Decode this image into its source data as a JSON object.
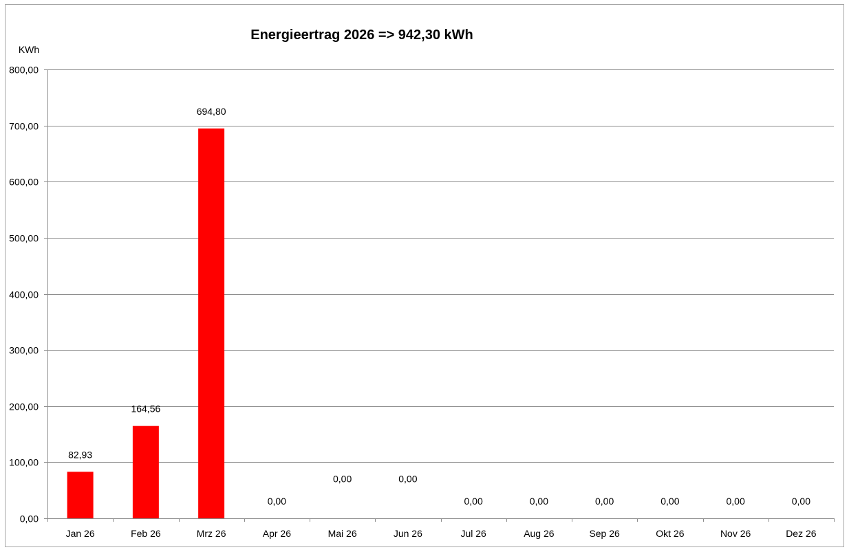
{
  "chart_data": {
    "type": "bar",
    "title": "Energieertrag  2026  =>  942,30 kWh",
    "ylabel": "KWh",
    "xlabel": "",
    "ylim": [
      0,
      800
    ],
    "yticks": [
      0,
      100,
      200,
      300,
      400,
      500,
      600,
      700,
      800
    ],
    "ytick_labels": [
      "0,00",
      "100,00",
      "200,00",
      "300,00",
      "400,00",
      "500,00",
      "600,00",
      "700,00",
      "800,00"
    ],
    "grid": true,
    "legend": "none",
    "bar_color": "#ff0000",
    "categories": [
      "Jan 26",
      "Feb 26",
      "Mrz 26",
      "Apr 26",
      "Mai 26",
      "Jun 26",
      "Jul 26",
      "Aug 26",
      "Sep 26",
      "Okt 26",
      "Nov 26",
      "Dez 26"
    ],
    "values": [
      82.93,
      164.56,
      694.8,
      0,
      0,
      0,
      0,
      0,
      0,
      0,
      0,
      0
    ],
    "data_labels": [
      "82,93",
      "164,56",
      "694,80",
      "0,00",
      "0,00",
      "0,00",
      "0,00",
      "0,00",
      "0,00",
      "0,00",
      "0,00",
      "0,00"
    ],
    "data_label_offsets_kwh": [
      0,
      0,
      0,
      0,
      40,
      40,
      0,
      0,
      0,
      0,
      0,
      0
    ]
  }
}
